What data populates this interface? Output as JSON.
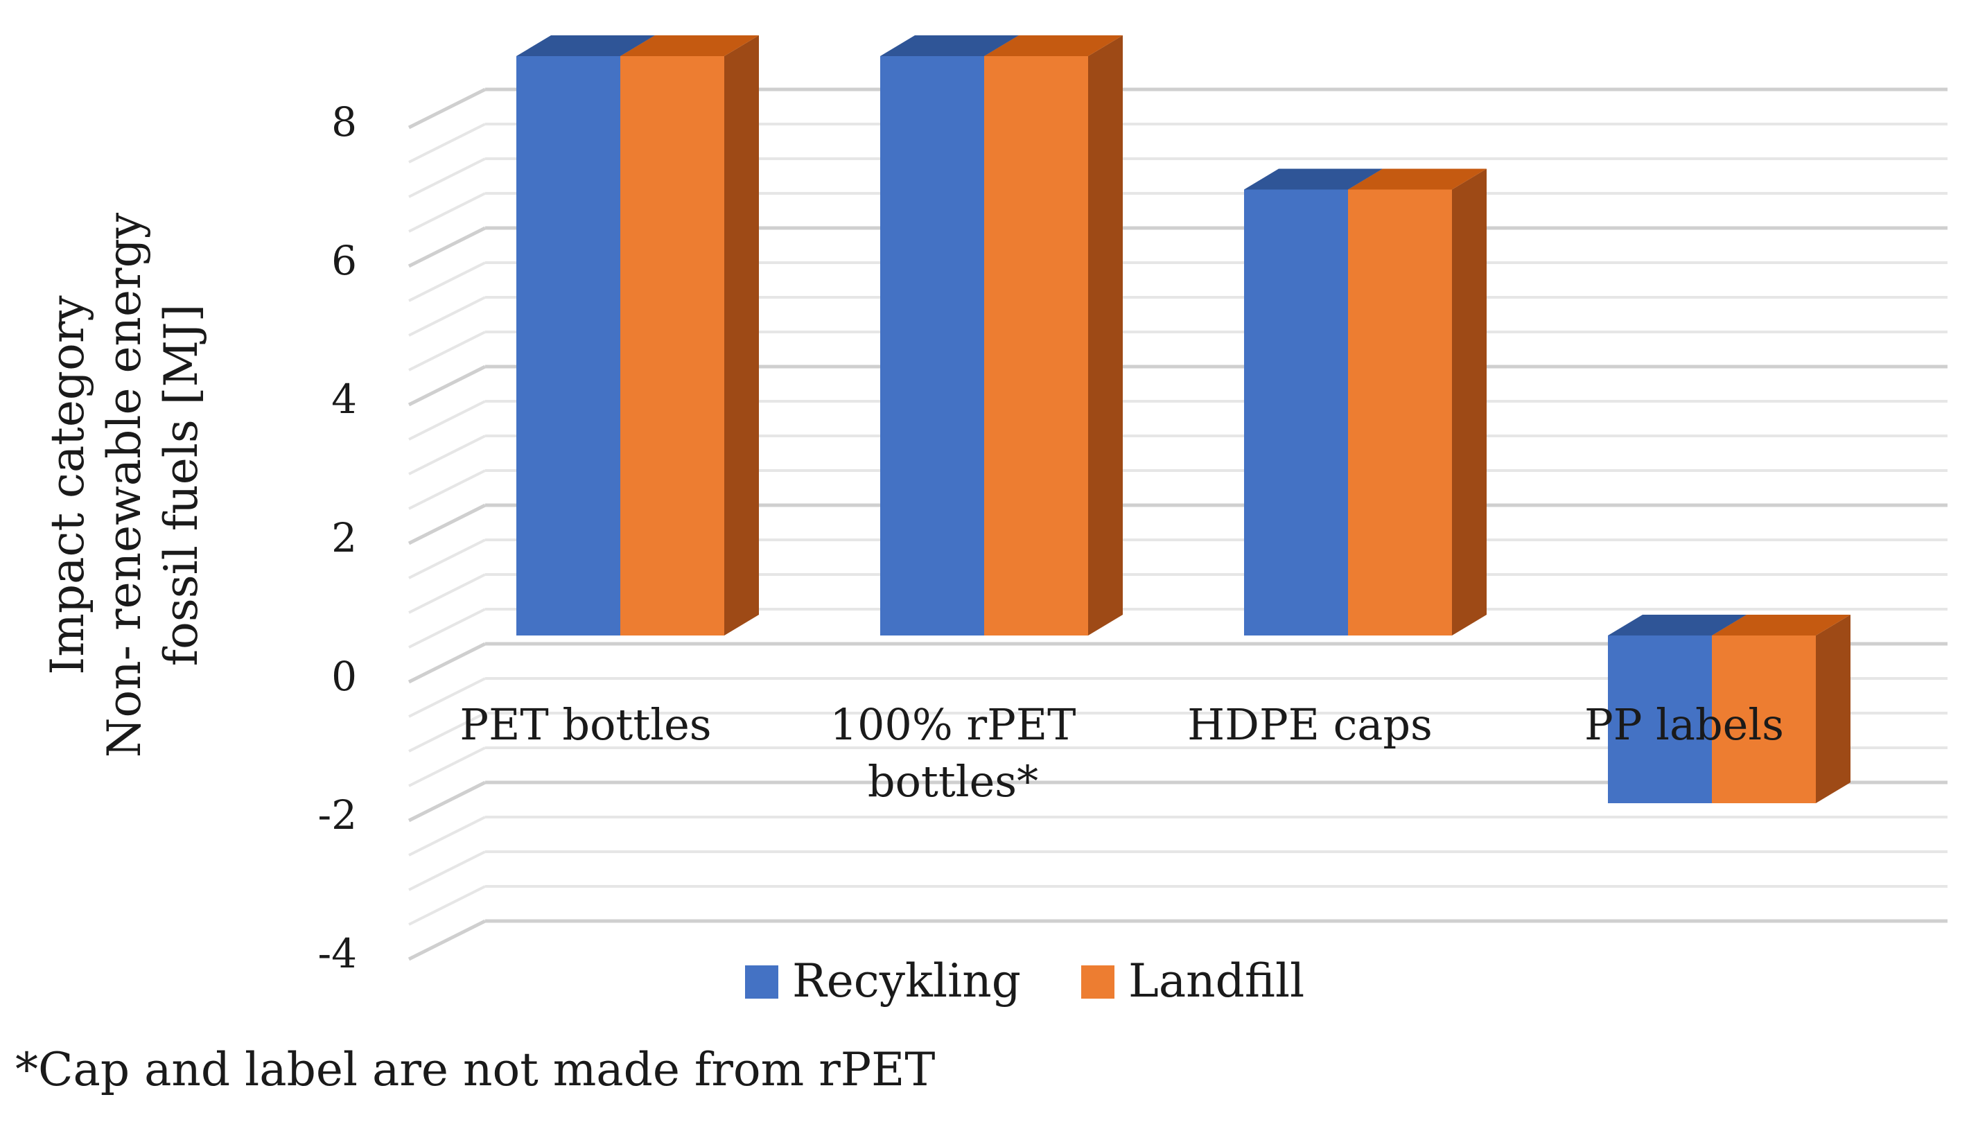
{
  "chart_data": {
    "type": "bar",
    "categories": [
      "PET bottles",
      "100% rPET\nbottles*",
      "HDPE caps",
      "PP labels"
    ],
    "series": [
      {
        "name": "Recykling",
        "values": [
          7.6,
          7.6,
          5.85,
          -2.2
        ]
      },
      {
        "name": "Landfill",
        "values": [
          7.6,
          7.6,
          5.85,
          -2.2
        ]
      }
    ],
    "ylabel": [
      "Impact category",
      "Non- renewable energy",
      "fossil fuels [MJ]"
    ],
    "ylim": [
      -4,
      8
    ],
    "yticks": [
      -4,
      -2,
      0,
      2,
      4,
      6,
      8
    ],
    "grid": true,
    "legend_position": "bottom",
    "colors": {
      "Recykling": {
        "front": "#4472C4",
        "top": "#2F5597",
        "side": "#2F5597"
      },
      "Landfill": {
        "front": "#ED7D31",
        "top": "#C55A11",
        "side": "#9E4A16"
      }
    },
    "style": "3d-clustered-column"
  },
  "footnote": "*Cap and label are not made from rPET"
}
